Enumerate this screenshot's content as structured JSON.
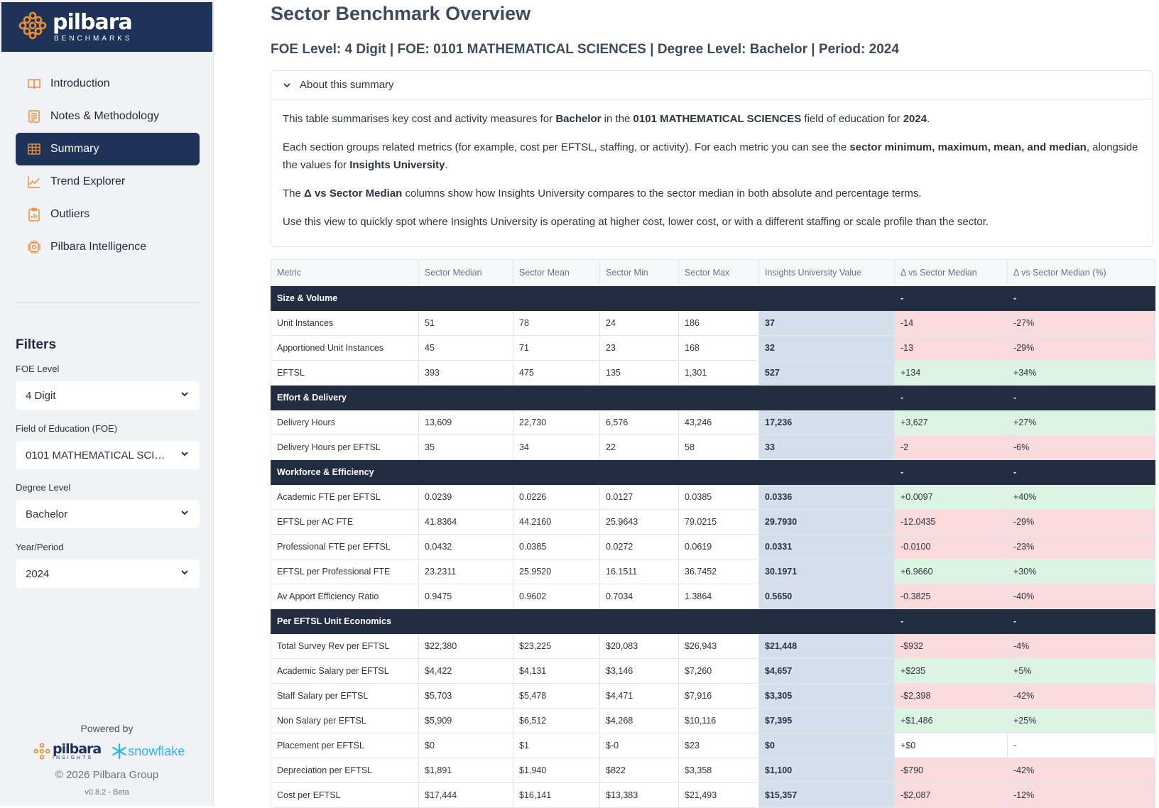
{
  "sidebar": {
    "brand": {
      "word": "pilbara",
      "sub": "BENCHMARKS"
    },
    "nav": [
      {
        "label": "Introduction",
        "icon": "book-icon",
        "active": false
      },
      {
        "label": "Notes & Methodology",
        "icon": "notes-icon",
        "active": false
      },
      {
        "label": "Summary",
        "icon": "table-icon",
        "active": true
      },
      {
        "label": "Trend Explorer",
        "icon": "line-chart-icon",
        "active": false
      },
      {
        "label": "Outliers",
        "icon": "clipboard-chart-icon",
        "active": false
      },
      {
        "label": "Pilbara Intelligence",
        "icon": "chip-icon",
        "active": false
      }
    ],
    "filters_title": "Filters",
    "filters": {
      "foe_level": {
        "label": "FOE Level",
        "value": "4 Digit"
      },
      "foe": {
        "label": "Field of Education (FOE)",
        "value": "0101 MATHEMATICAL SCIEN..."
      },
      "degree": {
        "label": "Degree Level",
        "value": "Bachelor"
      },
      "year": {
        "label": "Year/Period",
        "value": "2024"
      }
    },
    "powered_by": "Powered by",
    "footer_logo_word": "pilbara",
    "footer_logo_sub": "INSIGHTS",
    "snowflake": "snowflake",
    "copyright": "© 2026 Pilbara Group",
    "version": "v0.8.2 - Beta"
  },
  "main": {
    "title": "Sector Benchmark Overview",
    "subtitle": "FOE Level: 4 Digit | FOE: 0101 MATHEMATICAL SCIENCES | Degree Level: Bachelor | Period: 2024",
    "expander": {
      "label": "About this summary",
      "p1": {
        "a": "This table summarises key cost and activity measures for ",
        "b": "Bachelor",
        "c": " in the ",
        "d": "0101 MATHEMATICAL SCIENCES",
        "e": " field of education for ",
        "f": "2024",
        "g": "."
      },
      "p2": {
        "a": "Each section groups related metrics (for example, cost per EFTSL, staffing, or activity). For each metric you can see the ",
        "b": "sector minimum, maximum, mean, and median",
        "c": ", alongside the values for ",
        "d": "Insights University",
        "e": "."
      },
      "p3": {
        "a": "The ",
        "b": "Δ vs Sector Median",
        "c": " columns show how Insights University compares to the sector median in both absolute and percentage terms."
      },
      "p4": "Use this view to quickly spot where Insights University is operating at higher cost, lower cost, or with a different staffing or scale profile than the sector."
    },
    "table": {
      "headers": [
        "Metric",
        "Sector Median",
        "Sector Mean",
        "Sector Min",
        "Sector Max",
        "Insights University Value",
        "Δ vs Sector Median",
        "Δ vs Sector Median (%)"
      ],
      "rows": [
        {
          "section": true,
          "cells": [
            "Size & Volume",
            "",
            "",
            "",
            "",
            "",
            "-",
            "-"
          ]
        },
        {
          "cells": [
            "Unit Instances",
            "51",
            "78",
            "24",
            "186",
            "37",
            "-14",
            "-27%"
          ],
          "dir": "neg"
        },
        {
          "cells": [
            "Apportioned Unit Instances",
            "45",
            "71",
            "23",
            "168",
            "32",
            "-13",
            "-29%"
          ],
          "dir": "neg"
        },
        {
          "cells": [
            "EFTSL",
            "393",
            "475",
            "135",
            "1,301",
            "527",
            "+134",
            "+34%"
          ],
          "dir": "pos"
        },
        {
          "section": true,
          "cells": [
            "Effort & Delivery",
            "",
            "",
            "",
            "",
            "",
            "-",
            "-"
          ]
        },
        {
          "cells": [
            "Delivery Hours",
            "13,609",
            "22,730",
            "6,576",
            "43,246",
            "17,236",
            "+3,627",
            "+27%"
          ],
          "dir": "pos"
        },
        {
          "cells": [
            "Delivery Hours per EFTSL",
            "35",
            "34",
            "22",
            "58",
            "33",
            "-2",
            "-6%"
          ],
          "dir": "neg"
        },
        {
          "section": true,
          "cells": [
            "Workforce & Efficiency",
            "",
            "",
            "",
            "",
            "",
            "-",
            "-"
          ]
        },
        {
          "cells": [
            "Academic FTE per EFTSL",
            "0.0239",
            "0.0226",
            "0.0127",
            "0.0385",
            "0.0336",
            "+0.0097",
            "+40%"
          ],
          "dir": "pos"
        },
        {
          "cells": [
            "EFTSL per AC FTE",
            "41.8364",
            "44.2160",
            "25.9643",
            "79.0215",
            "29.7930",
            "-12.0435",
            "-29%"
          ],
          "dir": "neg"
        },
        {
          "cells": [
            "Professional FTE per EFTSL",
            "0.0432",
            "0.0385",
            "0.0272",
            "0.0619",
            "0.0331",
            "-0.0100",
            "-23%"
          ],
          "dir": "neg"
        },
        {
          "cells": [
            "EFTSL per Professional FTE",
            "23.2311",
            "25.9520",
            "16.1511",
            "36.7452",
            "30.1971",
            "+6.9660",
            "+30%"
          ],
          "dir": "pos"
        },
        {
          "cells": [
            "Av Apport Efficiency Ratio",
            "0.9475",
            "0.9602",
            "0.7034",
            "1.3864",
            "0.5650",
            "-0.3825",
            "-40%"
          ],
          "dir": "neg"
        },
        {
          "section": true,
          "cells": [
            "Per EFTSL Unit Economics",
            "",
            "",
            "",
            "",
            "",
            "-",
            "-"
          ]
        },
        {
          "cells": [
            "Total Survey Rev per EFTSL",
            "$22,380",
            "$23,225",
            "$20,083",
            "$26,943",
            "$21,448",
            "-$932",
            "-4%"
          ],
          "dir": "neg"
        },
        {
          "cells": [
            "Academic Salary per EFTSL",
            "$4,422",
            "$4,131",
            "$3,146",
            "$7,260",
            "$4,657",
            "+$235",
            "+5%"
          ],
          "dir": "pos"
        },
        {
          "cells": [
            "Staff Salary per EFTSL",
            "$5,703",
            "$5,478",
            "$4,471",
            "$7,916",
            "$3,305",
            "-$2,398",
            "-42%"
          ],
          "dir": "neg"
        },
        {
          "cells": [
            "Non Salary per EFTSL",
            "$5,909",
            "$6,512",
            "$4,268",
            "$10,116",
            "$7,395",
            "+$1,486",
            "+25%"
          ],
          "dir": "pos"
        },
        {
          "cells": [
            "Placement per EFTSL",
            "$0",
            "$1",
            "$-0",
            "$23",
            "$0",
            "+$0",
            "-"
          ],
          "dir": "neu"
        },
        {
          "cells": [
            "Depreciation per EFTSL",
            "$1,891",
            "$1,940",
            "$822",
            "$3,358",
            "$1,100",
            "-$790",
            "-42%"
          ],
          "dir": "neg"
        },
        {
          "cells": [
            "Cost per EFTSL",
            "$17,444",
            "$16,141",
            "$13,383",
            "$21,493",
            "$15,357",
            "-$2,087",
            "-12%"
          ],
          "dir": "neg"
        }
      ]
    }
  },
  "colors": {
    "navy": "#1e3357",
    "section_row": "#222d42",
    "iu_col": "#d3dfeb",
    "positive": "#dcf5e2",
    "negative": "#fadbdc",
    "accent_orange": "#e8913a"
  }
}
